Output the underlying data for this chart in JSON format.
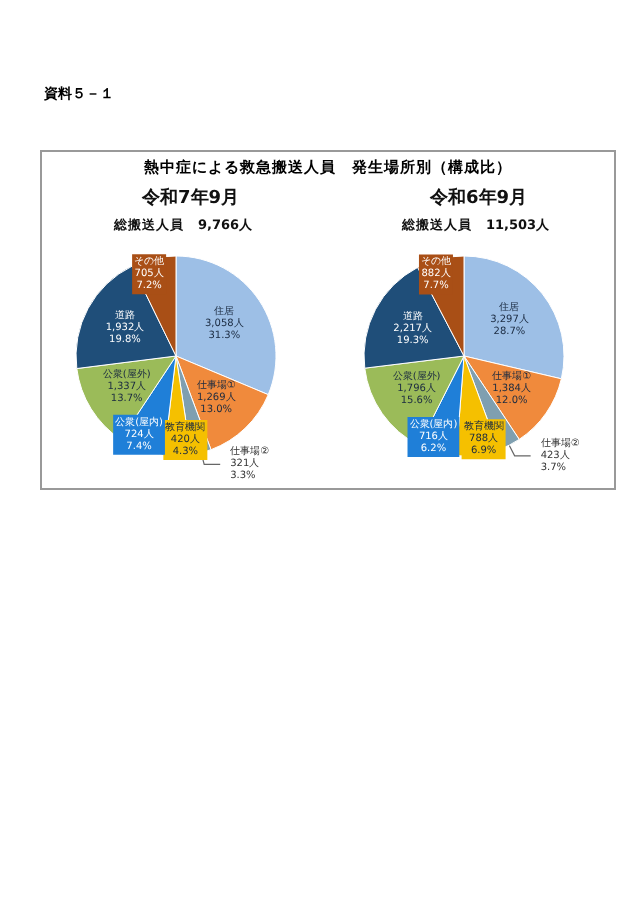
{
  "chart_data": [
    {
      "type": "pie",
      "title": "令和7年9月",
      "subtitle": "総搬送人員　9,766人",
      "annotations": [
        "資料５－１",
        "熱中症による救急搬送人員　発生場所別（構成比）"
      ],
      "categories": [
        "住居",
        "仕事場①",
        "仕事場②",
        "教育機関",
        "公衆(屋内)",
        "公衆(屋外)",
        "道路",
        "その他"
      ],
      "values": [
        3058,
        1269,
        321,
        420,
        724,
        1337,
        1932,
        705
      ],
      "value_labels": [
        "3,058人\n31.3%",
        "1,269人\n13.0%",
        "321人\n3.3%",
        "420人\n4.3%",
        "724人\n7.4%",
        "1,337人\n13.7%",
        "1,932人\n19.8%",
        "705人\n7.2%"
      ],
      "colors": [
        "#9dbfe6",
        "#f08a3c",
        "#7f9fb0",
        "#f5c000",
        "#1f7fd8",
        "#9bbb59",
        "#1f4e79",
        "#a94f16"
      ],
      "legend": false
    },
    {
      "type": "pie",
      "title": "令和6年9月",
      "subtitle": "総搬送人員　11,503人",
      "categories": [
        "住居",
        "仕事場①",
        "仕事場②",
        "教育機関",
        "公衆(屋内)",
        "公衆(屋外)",
        "道路",
        "その他"
      ],
      "values": [
        3297,
        1384,
        423,
        788,
        716,
        1796,
        2217,
        882
      ],
      "value_labels": [
        "3,297人\n28.7%",
        "1,384人\n12.0%",
        "423人\n3.7%",
        "788人\n6.9%",
        "716人\n6.2%",
        "1,796人\n15.6%",
        "2,217人\n19.3%",
        "882人\n7.7%"
      ],
      "colors": [
        "#9dbfe6",
        "#f08a3c",
        "#7f9fb0",
        "#f5c000",
        "#1f7fd8",
        "#9bbb59",
        "#1f4e79",
        "#a94f16"
      ],
      "legend": false
    }
  ]
}
